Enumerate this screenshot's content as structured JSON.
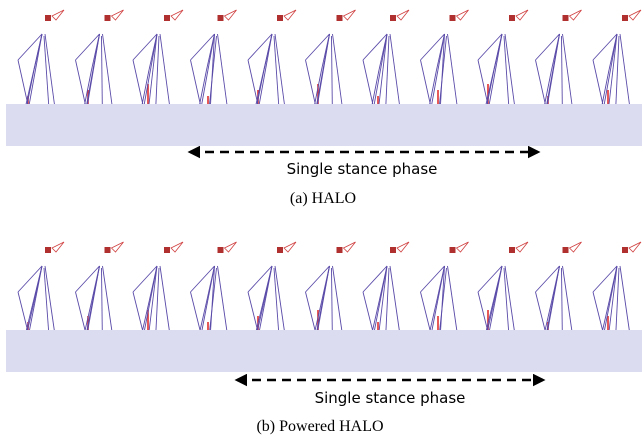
{
  "panels": [
    {
      "annotation": "Single stance phase",
      "caption": "(a) HALO"
    },
    {
      "annotation": "Single stance phase",
      "caption": "(b) Powered HALO"
    }
  ]
}
